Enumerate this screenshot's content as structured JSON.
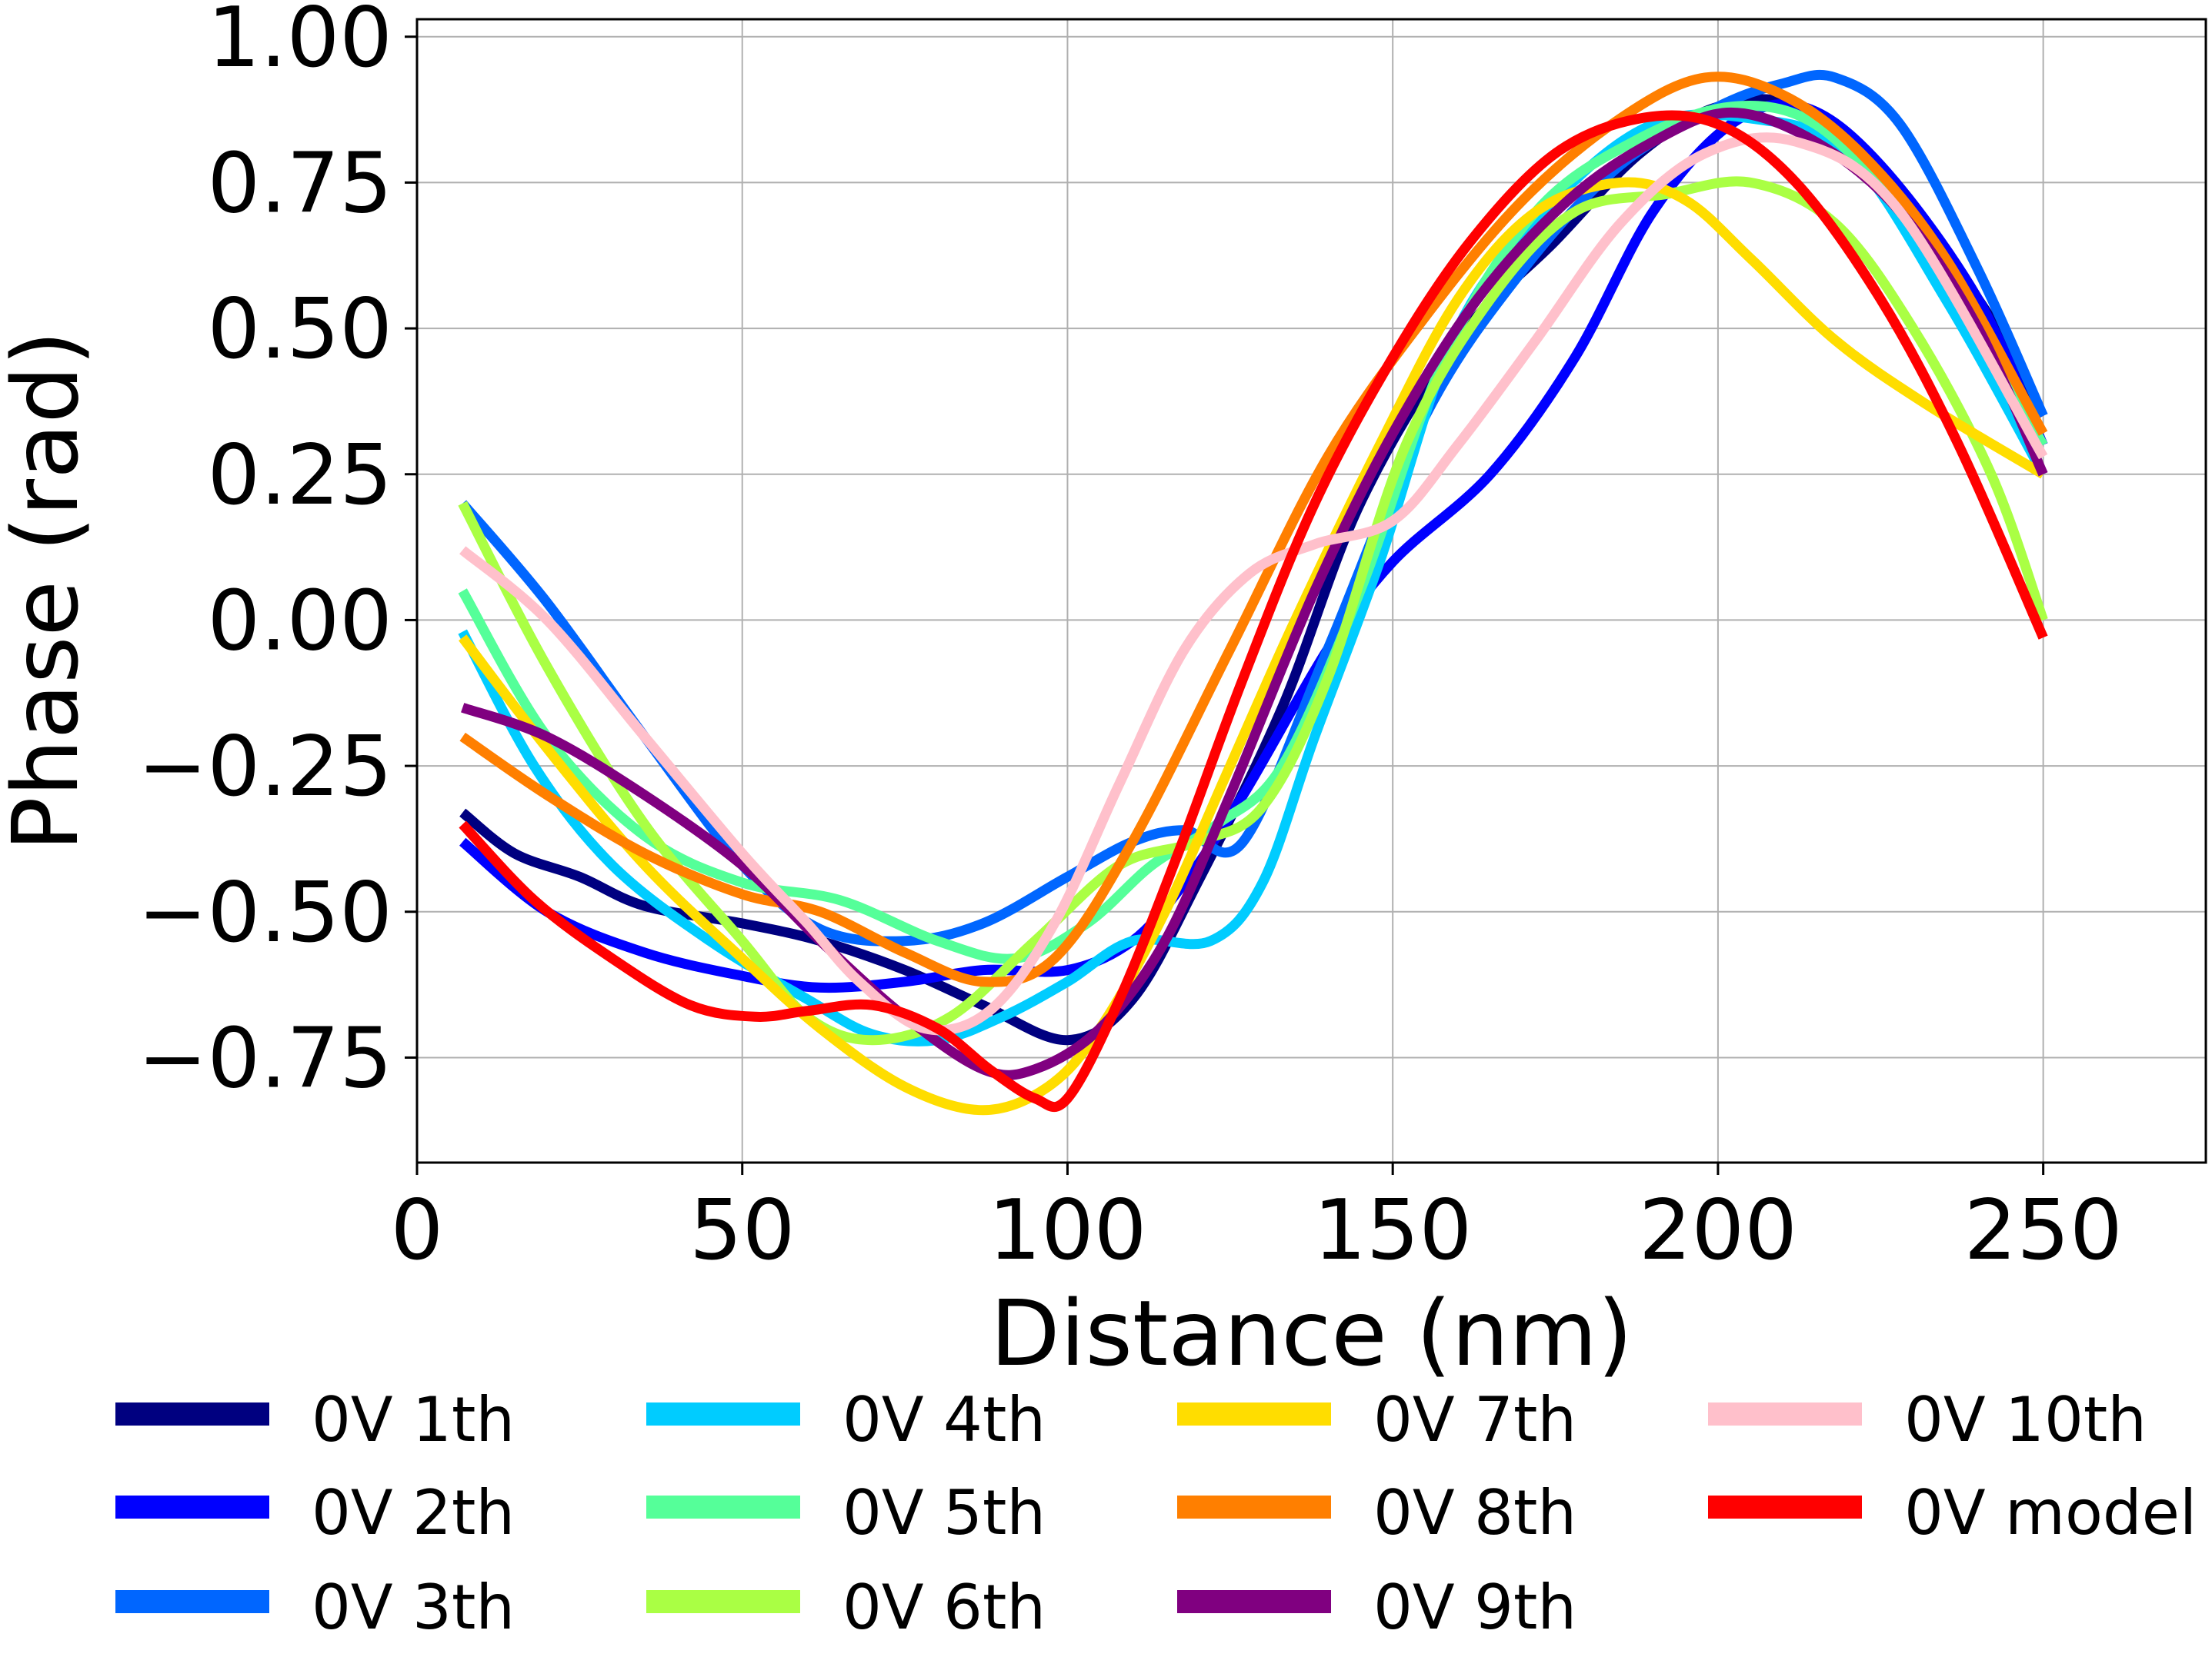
{
  "chart_data": {
    "type": "line",
    "title": "",
    "xlabel": "Distance (nm)",
    "ylabel": "Phase (rad)",
    "xlim": [
      0,
      275
    ],
    "ylim": [
      -0.93,
      1.03
    ],
    "xticks": [
      0,
      50,
      100,
      150,
      200,
      250
    ],
    "xtick_labels": [
      "0",
      "50",
      "100",
      "150",
      "200",
      "250"
    ],
    "yticks": [
      -0.75,
      -0.5,
      -0.25,
      0.0,
      0.25,
      0.5,
      0.75,
      1.0
    ],
    "ytick_labels": [
      "−0.75",
      "−0.50",
      "−0.25",
      "0.00",
      "0.25",
      "0.50",
      "0.75",
      "1.00"
    ],
    "grid": true,
    "legend_position": "bottom",
    "series": [
      {
        "name": "0V 1th",
        "color": "#000080",
        "x": [
          7,
          15,
          25,
          35,
          50,
          62,
          75,
          87,
          100,
          110,
          120,
          133,
          145,
          160,
          175,
          188,
          200,
          212,
          225,
          240,
          250
        ],
        "y": [
          -0.33,
          -0.4,
          -0.44,
          -0.49,
          -0.52,
          -0.55,
          -0.6,
          -0.66,
          -0.72,
          -0.65,
          -0.45,
          -0.15,
          0.2,
          0.48,
          0.65,
          0.8,
          0.88,
          0.88,
          0.75,
          0.55,
          0.35
        ]
      },
      {
        "name": "0V 2th",
        "color": "#0000ff",
        "x": [
          7,
          20,
          35,
          50,
          62,
          75,
          87,
          100,
          110,
          118,
          127,
          140,
          150,
          165,
          178,
          190,
          202,
          213,
          225,
          240,
          250
        ],
        "y": [
          -0.38,
          -0.5,
          -0.57,
          -0.61,
          -0.63,
          -0.62,
          -0.6,
          -0.6,
          -0.55,
          -0.45,
          -0.3,
          -0.05,
          0.1,
          0.25,
          0.45,
          0.7,
          0.85,
          0.88,
          0.78,
          0.55,
          0.3
        ]
      },
      {
        "name": "0V 3th",
        "color": "#0066ff",
        "x": [
          7,
          20,
          35,
          50,
          62,
          75,
          87,
          100,
          110,
          118,
          127,
          140,
          155,
          170,
          185,
          200,
          210,
          218,
          228,
          240,
          250
        ],
        "y": [
          0.2,
          0.03,
          -0.2,
          -0.42,
          -0.53,
          -0.55,
          -0.52,
          -0.44,
          -0.38,
          -0.36,
          -0.38,
          -0.05,
          0.35,
          0.6,
          0.78,
          0.88,
          0.92,
          0.93,
          0.85,
          0.6,
          0.35
        ]
      },
      {
        "name": "0V 4th",
        "color": "#00ccff",
        "x": [
          7,
          18,
          30,
          45,
          60,
          70,
          80,
          90,
          100,
          110,
          122,
          130,
          138,
          148,
          160,
          175,
          190,
          205,
          220,
          235,
          250
        ],
        "y": [
          -0.02,
          -0.25,
          -0.42,
          -0.55,
          -0.65,
          -0.71,
          -0.72,
          -0.68,
          -0.62,
          -0.55,
          -0.55,
          -0.45,
          -0.2,
          0.1,
          0.5,
          0.72,
          0.85,
          0.86,
          0.8,
          0.55,
          0.25
        ]
      },
      {
        "name": "0V 5th",
        "color": "#55ff99",
        "x": [
          7,
          20,
          35,
          50,
          65,
          80,
          92,
          103,
          113,
          123,
          133,
          145,
          158,
          172,
          187,
          202,
          215,
          228,
          240,
          250
        ],
        "y": [
          0.05,
          -0.2,
          -0.37,
          -0.45,
          -0.48,
          -0.55,
          -0.58,
          -0.52,
          -0.42,
          -0.35,
          -0.25,
          0.05,
          0.45,
          0.7,
          0.82,
          0.88,
          0.85,
          0.7,
          0.5,
          0.3
        ]
      },
      {
        "name": "0V 6th",
        "color": "#aaff44",
        "x": [
          7,
          20,
          35,
          50,
          60,
          70,
          82,
          95,
          108,
          120,
          130,
          140,
          152,
          165,
          178,
          192,
          205,
          218,
          230,
          242,
          250
        ],
        "y": [
          0.2,
          -0.08,
          -0.35,
          -0.55,
          -0.68,
          -0.72,
          -0.68,
          -0.55,
          -0.42,
          -0.38,
          -0.32,
          -0.1,
          0.3,
          0.55,
          0.7,
          0.73,
          0.75,
          0.68,
          0.5,
          0.25,
          0.0
        ]
      },
      {
        "name": "0V 7th",
        "color": "#ffdd00",
        "x": [
          7,
          20,
          35,
          50,
          62,
          75,
          87,
          97,
          105,
          115,
          125,
          135,
          148,
          160,
          172,
          185,
          195,
          205,
          218,
          232,
          250
        ],
        "y": [
          -0.03,
          -0.22,
          -0.42,
          -0.58,
          -0.7,
          -0.8,
          -0.84,
          -0.8,
          -0.7,
          -0.5,
          -0.25,
          0.0,
          0.3,
          0.55,
          0.7,
          0.75,
          0.72,
          0.62,
          0.48,
          0.37,
          0.25
        ]
      },
      {
        "name": "0V 8th",
        "color": "#ff7f00",
        "x": [
          7,
          20,
          35,
          50,
          62,
          75,
          87,
          98,
          110,
          125,
          140,
          155,
          170,
          185,
          198,
          210,
          222,
          235,
          250
        ],
        "y": [
          -0.2,
          -0.3,
          -0.4,
          -0.47,
          -0.5,
          -0.57,
          -0.62,
          -0.58,
          -0.38,
          -0.05,
          0.28,
          0.52,
          0.72,
          0.86,
          0.93,
          0.9,
          0.8,
          0.62,
          0.32
        ]
      },
      {
        "name": "0V 9th",
        "color": "#800080",
        "x": [
          7,
          20,
          35,
          50,
          62,
          75,
          87,
          95,
          105,
          115,
          125,
          138,
          150,
          163,
          177,
          190,
          202,
          215,
          228,
          240,
          250
        ],
        "y": [
          -0.15,
          -0.2,
          -0.3,
          -0.42,
          -0.55,
          -0.68,
          -0.77,
          -0.77,
          -0.7,
          -0.55,
          -0.3,
          0.05,
          0.32,
          0.55,
          0.72,
          0.82,
          0.87,
          0.82,
          0.7,
          0.5,
          0.25
        ]
      },
      {
        "name": "0V 10th",
        "color": "#ffc0cb",
        "x": [
          7,
          20,
          35,
          50,
          60,
          68,
          78,
          88,
          98,
          108,
          118,
          128,
          138,
          150,
          160,
          172,
          185,
          198,
          212,
          228,
          250
        ],
        "y": [
          0.12,
          0.0,
          -0.2,
          -0.4,
          -0.52,
          -0.62,
          -0.7,
          -0.67,
          -0.52,
          -0.28,
          -0.05,
          0.08,
          0.13,
          0.17,
          0.3,
          0.48,
          0.68,
          0.8,
          0.82,
          0.7,
          0.28
        ]
      },
      {
        "name": "0V model",
        "color": "#ff0000",
        "x": [
          7,
          18,
          30,
          42,
          52,
          60,
          70,
          80,
          88,
          95,
          100,
          108,
          117,
          127,
          138,
          150,
          162,
          175,
          188,
          200,
          212,
          225,
          237,
          250
        ],
        "y": [
          -0.35,
          -0.48,
          -0.58,
          -0.66,
          -0.68,
          -0.67,
          -0.66,
          -0.7,
          -0.77,
          -0.82,
          -0.82,
          -0.65,
          -0.4,
          -0.1,
          0.2,
          0.45,
          0.65,
          0.8,
          0.86,
          0.85,
          0.75,
          0.55,
          0.3,
          -0.03
        ]
      }
    ]
  }
}
